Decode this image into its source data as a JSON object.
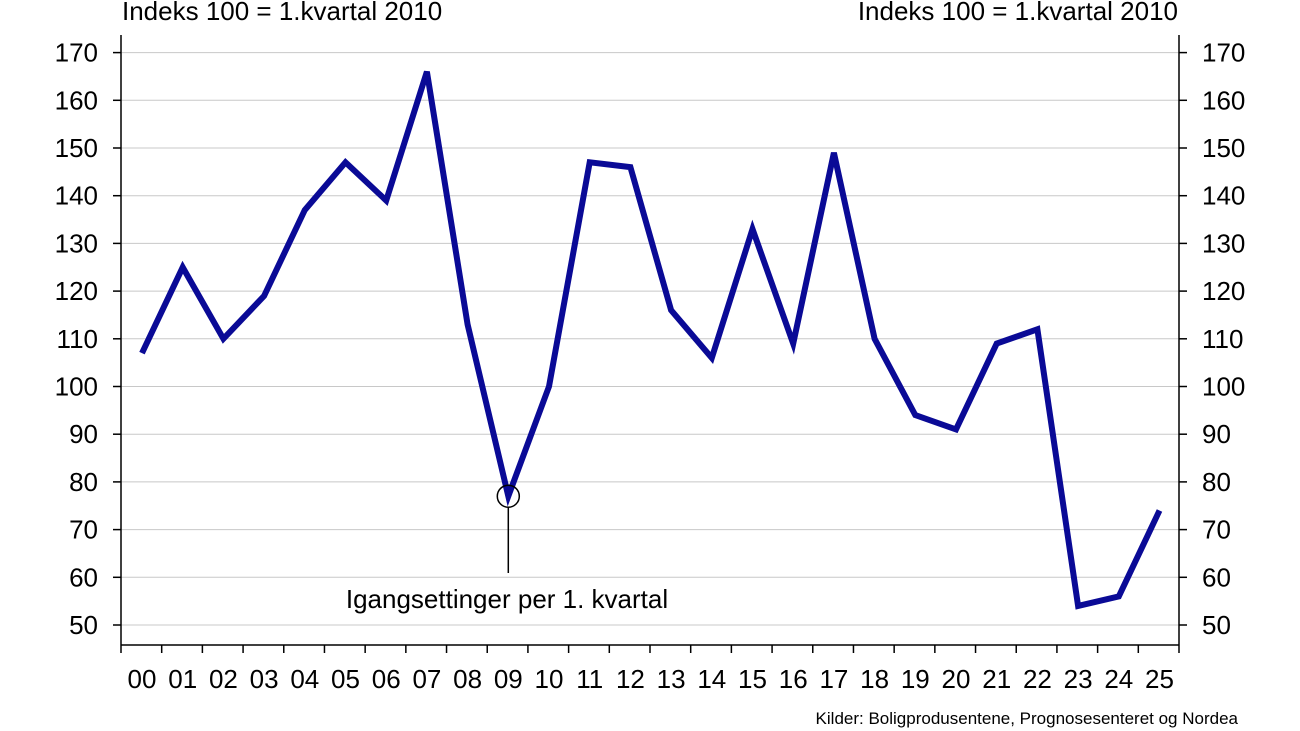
{
  "chart_data": {
    "type": "line",
    "unit_label_left": "Indeks 100 = 1.kvartal 2010",
    "unit_label_right": "Indeks 100 = 1.kvartal 2010",
    "source": "Kilder: Boligprodusentene, Prognosesenteret og Nordea",
    "categories": [
      "00",
      "01",
      "02",
      "03",
      "04",
      "05",
      "06",
      "07",
      "08",
      "09",
      "10",
      "11",
      "12",
      "13",
      "14",
      "15",
      "16",
      "17",
      "18",
      "19",
      "20",
      "21",
      "22",
      "23",
      "24",
      "25"
    ],
    "series": [
      {
        "color": "#0a0a96",
        "values": [
          107,
          125,
          110,
          119,
          137,
          147,
          139,
          166,
          113,
          77,
          100,
          147,
          146,
          116,
          106,
          133,
          109,
          149,
          110,
          94,
          91,
          109,
          112,
          54,
          56,
          74
        ]
      }
    ],
    "ylim": [
      45,
      173
    ],
    "yticks": [
      50,
      60,
      70,
      80,
      90,
      100,
      110,
      120,
      130,
      140,
      150,
      160,
      170
    ],
    "grid": true,
    "annotation": {
      "text": "Igangsettinger per 1. kvartal",
      "category": "09",
      "value": 77
    }
  }
}
